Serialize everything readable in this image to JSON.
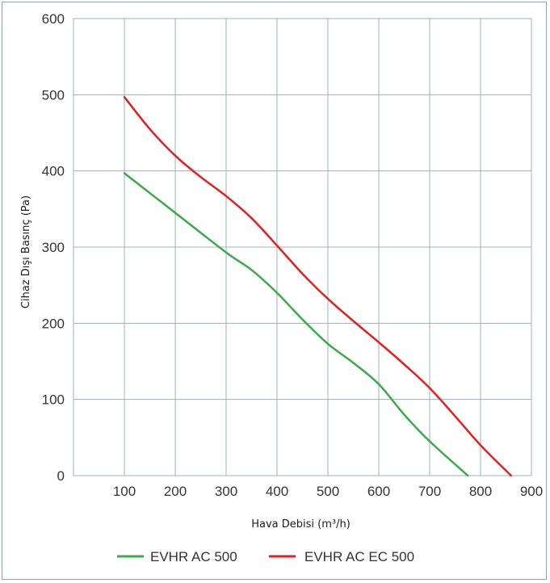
{
  "chart_data": {
    "type": "line",
    "xlabel": "Hava Debisi (m³/h)",
    "ylabel": "Cihaz Dışı Basınç (Pa)",
    "xlim": [
      0,
      900
    ],
    "ylim": [
      0,
      600
    ],
    "x_ticks": [
      "100",
      "200",
      "300",
      "400",
      "500",
      "600",
      "700",
      "800",
      "900"
    ],
    "y_ticks": [
      "0",
      "100",
      "200",
      "300",
      "400",
      "500",
      "600"
    ],
    "grid": true,
    "legend_position": "bottom",
    "series": [
      {
        "name": "EVHR AC 500",
        "color": "#3aaa4a",
        "points": [
          [
            100,
            397
          ],
          [
            200,
            345
          ],
          [
            300,
            293
          ],
          [
            350,
            270
          ],
          [
            400,
            240
          ],
          [
            450,
            205
          ],
          [
            500,
            173
          ],
          [
            550,
            148
          ],
          [
            600,
            120
          ],
          [
            650,
            80
          ],
          [
            700,
            45
          ],
          [
            775,
            0
          ]
        ]
      },
      {
        "name": "EVHR AC EC 500",
        "color": "#e02020",
        "points": [
          [
            100,
            497
          ],
          [
            150,
            455
          ],
          [
            200,
            420
          ],
          [
            250,
            392
          ],
          [
            300,
            367
          ],
          [
            350,
            338
          ],
          [
            400,
            302
          ],
          [
            450,
            265
          ],
          [
            500,
            232
          ],
          [
            550,
            203
          ],
          [
            600,
            175
          ],
          [
            650,
            146
          ],
          [
            700,
            115
          ],
          [
            750,
            78
          ],
          [
            800,
            40
          ],
          [
            860,
            0
          ]
        ]
      }
    ]
  }
}
